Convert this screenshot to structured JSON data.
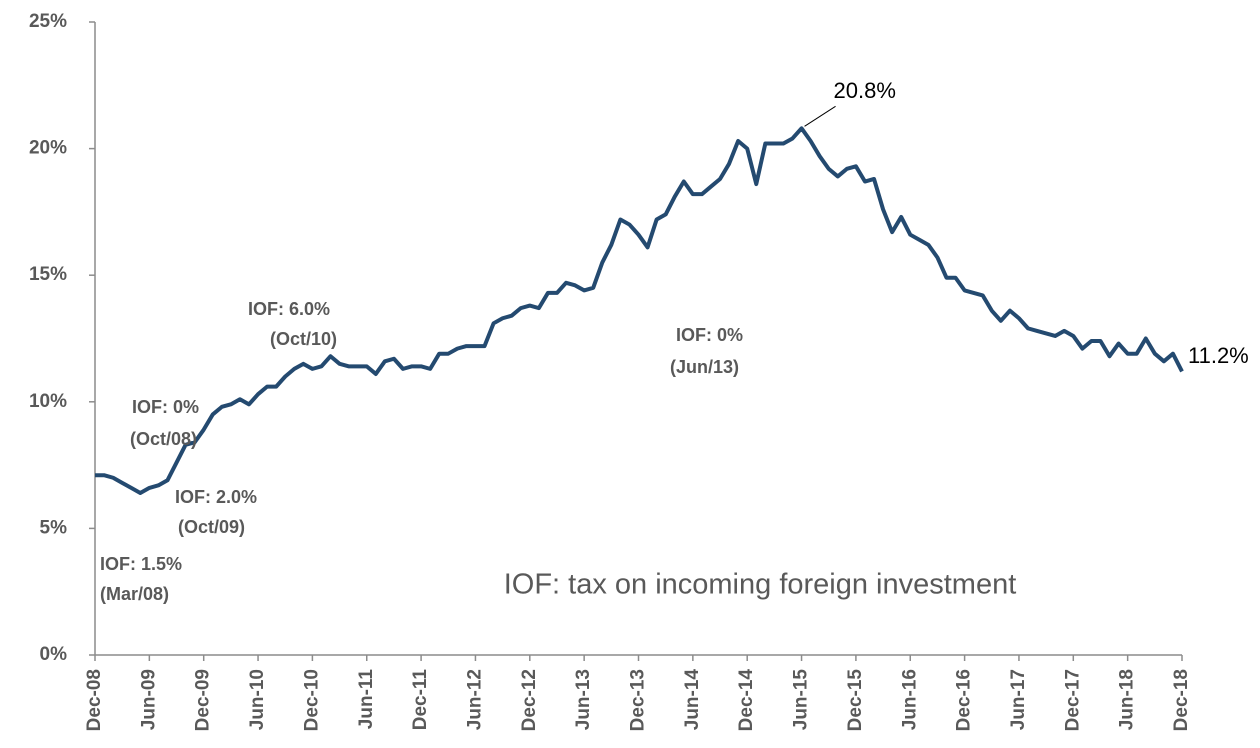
{
  "chart_data": {
    "type": "line",
    "categories": [
      "Dec-08",
      null,
      null,
      null,
      null,
      null,
      "Jun-09",
      null,
      null,
      null,
      null,
      null,
      "Dec-09",
      null,
      null,
      null,
      null,
      null,
      "Jun-10",
      null,
      null,
      null,
      null,
      null,
      "Dec-10",
      null,
      null,
      null,
      null,
      null,
      "Jun-11",
      null,
      null,
      null,
      null,
      null,
      "Dec-11",
      null,
      null,
      null,
      null,
      null,
      "Jun-12",
      null,
      null,
      null,
      null,
      null,
      "Dec-12",
      null,
      null,
      null,
      null,
      null,
      "Jun-13",
      null,
      null,
      null,
      null,
      null,
      "Dec-13",
      null,
      null,
      null,
      null,
      null,
      "Jun-14",
      null,
      null,
      null,
      null,
      null,
      "Dec-14",
      null,
      null,
      null,
      null,
      null,
      "Jun-15",
      null,
      null,
      null,
      null,
      null,
      "Dec-15",
      null,
      null,
      null,
      null,
      null,
      "Jun-16",
      null,
      null,
      null,
      null,
      null,
      "Dec-16",
      null,
      null,
      null,
      null,
      null,
      "Jun-17",
      null,
      null,
      null,
      null,
      null,
      "Dec-17",
      null,
      null,
      null,
      null,
      null,
      "Jun-18",
      null,
      null,
      null,
      null,
      null,
      "Dec-18"
    ],
    "values": [
      7.1,
      7.1,
      7.0,
      6.8,
      6.6,
      6.4,
      6.6,
      6.7,
      6.9,
      7.6,
      8.3,
      8.4,
      8.9,
      9.5,
      9.8,
      9.9,
      10.1,
      9.9,
      10.3,
      10.6,
      10.6,
      11.0,
      11.3,
      11.5,
      11.3,
      11.4,
      11.8,
      11.5,
      11.4,
      11.4,
      11.4,
      11.1,
      11.6,
      11.7,
      11.3,
      11.4,
      11.4,
      11.3,
      11.9,
      11.9,
      12.1,
      12.2,
      12.2,
      12.2,
      13.1,
      13.3,
      13.4,
      13.7,
      13.8,
      13.7,
      14.3,
      14.3,
      14.7,
      14.6,
      14.4,
      14.5,
      15.5,
      16.2,
      17.2,
      17.0,
      16.6,
      16.1,
      17.2,
      17.4,
      18.1,
      18.7,
      18.2,
      18.2,
      18.5,
      18.8,
      19.4,
      20.3,
      20.0,
      18.6,
      20.2,
      20.2,
      20.2,
      20.4,
      20.8,
      20.3,
      19.7,
      19.2,
      18.9,
      19.2,
      19.3,
      18.7,
      18.8,
      17.6,
      16.7,
      17.3,
      16.6,
      16.4,
      16.2,
      15.7,
      14.9,
      14.9,
      14.4,
      14.3,
      14.2,
      13.6,
      13.2,
      13.6,
      13.3,
      12.9,
      12.8,
      12.7,
      12.6,
      12.8,
      12.6,
      12.1,
      12.4,
      12.4,
      11.8,
      12.3,
      11.9,
      11.9,
      12.5,
      11.9,
      11.6,
      11.9,
      11.2
    ],
    "value_labels": [
      null,
      null,
      null,
      null,
      null,
      null,
      null,
      null,
      null,
      null,
      null,
      null,
      null,
      null,
      null,
      null,
      null,
      null,
      null,
      null,
      null,
      null,
      null,
      null,
      null,
      null,
      null,
      null,
      null,
      null,
      null,
      null,
      null,
      null,
      null,
      null,
      null,
      null,
      null,
      null,
      null,
      null,
      null,
      null,
      null,
      null,
      null,
      null,
      null,
      null,
      null,
      null,
      null,
      null,
      null,
      null,
      null,
      null,
      null,
      null,
      null,
      null,
      null,
      null,
      null,
      null,
      null,
      null,
      null,
      null,
      null,
      null,
      null,
      null,
      null,
      null,
      null,
      null,
      "20.8%",
      null,
      null,
      null,
      null,
      null,
      null,
      null,
      null,
      null,
      null,
      null,
      null,
      null,
      null,
      null,
      null,
      null,
      null,
      null,
      null,
      null,
      null,
      null,
      null,
      null,
      null,
      null,
      null,
      null,
      null,
      null,
      null,
      null,
      null,
      null,
      null,
      null,
      null,
      null,
      null,
      null,
      "11.2%"
    ],
    "color": "#244a70",
    "ylim": [
      0,
      25
    ],
    "yticks": [
      {
        "value": 0,
        "label": "0%"
      },
      {
        "value": 5,
        "label": "5%"
      },
      {
        "value": 10,
        "label": "10%"
      },
      {
        "value": 15,
        "label": "15%"
      },
      {
        "value": 20,
        "label": "20%"
      },
      {
        "value": 25,
        "label": "25%"
      }
    ],
    "annotations": [
      [
        "IOF: 1.5%",
        "(Mar/08)"
      ],
      [
        "IOF: 0%",
        "(Oct/08)"
      ],
      [
        "IOF: 2.0%",
        "(Oct/09)"
      ],
      [
        "IOF: 6.0%",
        "(Oct/10)"
      ],
      [
        "IOF: 0%",
        "(Jun/13)"
      ]
    ],
    "note": "IOF: tax on incoming foreign investment"
  }
}
